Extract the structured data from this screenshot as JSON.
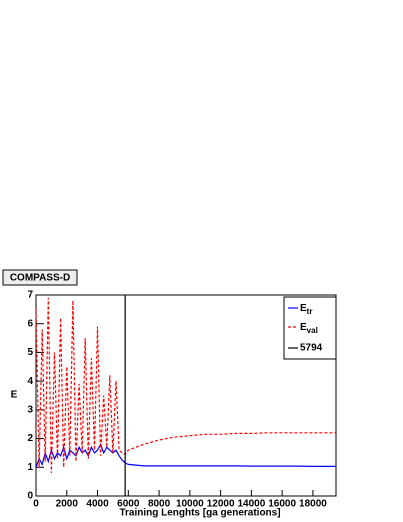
{
  "chart_data": {
    "type": "line",
    "title": "COMPASS-D",
    "x_label": "Training Lenghts [ga generations]",
    "y_label": "E",
    "x": [
      0,
      200,
      400,
      600,
      800,
      1000,
      1200,
      1400,
      1600,
      1800,
      2000,
      2200,
      2400,
      2600,
      2800,
      3000,
      3200,
      3400,
      3600,
      3800,
      4000,
      4200,
      4400,
      4600,
      4800,
      5000,
      5200,
      5400,
      5600,
      5800,
      6000,
      7000,
      8000,
      9000,
      10000,
      11000,
      12000,
      13000,
      14000,
      15000,
      16000,
      17000,
      18000,
      19000,
      19500
    ],
    "series": [
      {
        "name": "E",
        "subscript": "tr",
        "color": "#0000ff",
        "dash": false,
        "values": [
          1.0,
          1.3,
          1.1,
          1.5,
          1.2,
          1.6,
          1.3,
          1.5,
          1.4,
          1.7,
          1.3,
          1.6,
          1.5,
          1.4,
          1.7,
          1.5,
          1.6,
          1.4,
          1.7,
          1.5,
          1.6,
          1.8,
          1.5,
          1.7,
          1.6,
          1.5,
          1.6,
          1.4,
          1.25,
          1.15,
          1.1,
          1.05,
          1.05,
          1.05,
          1.05,
          1.05,
          1.05,
          1.05,
          1.04,
          1.04,
          1.04,
          1.04,
          1.03,
          1.03,
          1.03
        ]
      },
      {
        "name": "E",
        "subscript": "val",
        "color": "#ff0000",
        "dash": true,
        "values": [
          6.5,
          1.0,
          5.8,
          1.2,
          6.9,
          0.8,
          5.0,
          1.3,
          6.2,
          1.0,
          4.5,
          1.4,
          6.8,
          1.2,
          3.9,
          1.5,
          5.5,
          1.3,
          4.8,
          1.6,
          5.9,
          1.4,
          3.5,
          1.7,
          4.2,
          1.5,
          4.0,
          1.6,
          1.5,
          1.45,
          1.6,
          1.8,
          1.95,
          2.05,
          2.1,
          2.15,
          2.15,
          2.18,
          2.18,
          2.2,
          2.2,
          2.2,
          2.2,
          2.2,
          2.2
        ]
      }
    ],
    "vline": {
      "value": 5794,
      "color": "#000000"
    },
    "xlim": [
      0,
      19500
    ],
    "ylim": [
      0,
      7
    ],
    "xticks": [
      0,
      2000,
      4000,
      6000,
      8000,
      10000,
      12000,
      14000,
      16000,
      18000
    ],
    "yticks": [
      0,
      1,
      2,
      3,
      4,
      5,
      6,
      7
    ]
  }
}
